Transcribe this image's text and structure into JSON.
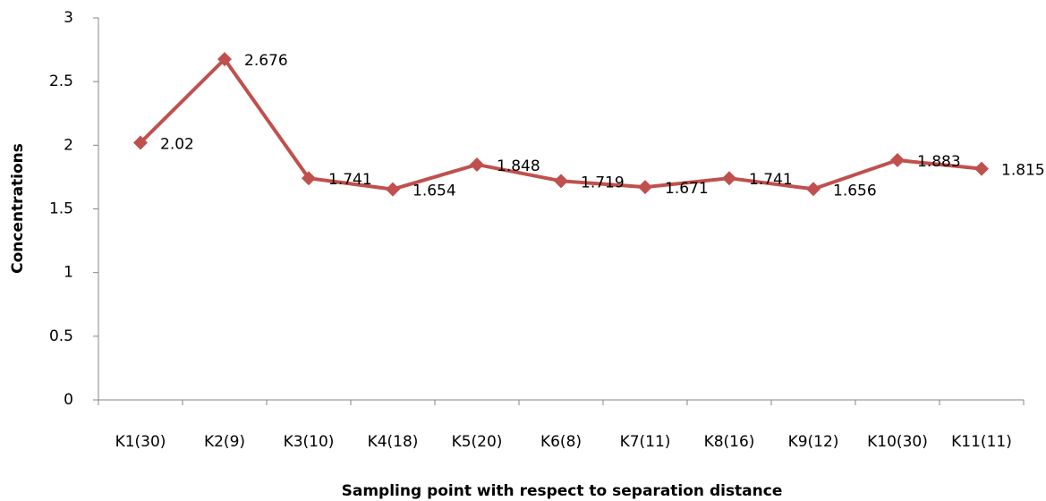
{
  "chart_data": {
    "type": "line",
    "x_label": "Sampling point with respect to separation distance",
    "y_label": "Concentrations",
    "categories": [
      "K1(30)",
      "K2(9)",
      "K3(10)",
      "K4(18)",
      "K5(20)",
      "K6(8)",
      "K7(11)",
      "K8(16)",
      "K9(12)",
      "K10(30)",
      "K11(11)"
    ],
    "series": [
      {
        "name": "Concentrations",
        "color": "#c0504d",
        "values": [
          2.02,
          2.676,
          1.741,
          1.654,
          1.848,
          1.719,
          1.671,
          1.741,
          1.656,
          1.883,
          1.815
        ]
      }
    ],
    "ylim": [
      0,
      3
    ],
    "yticks": [
      0,
      0.5,
      1,
      1.5,
      2,
      2.5,
      3
    ],
    "grid": false
  }
}
